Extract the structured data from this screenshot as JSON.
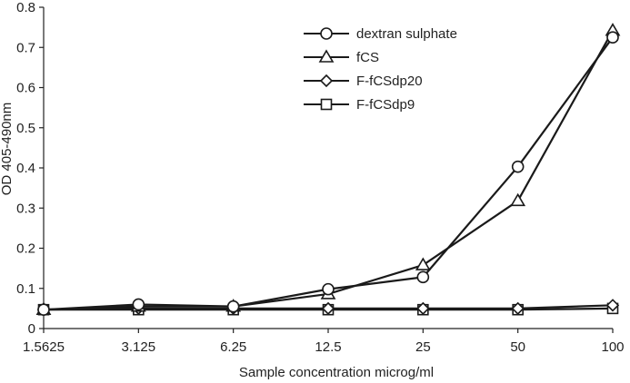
{
  "chart_data": {
    "type": "line",
    "title": "",
    "xlabel": "Sample concentration microg/ml",
    "ylabel": "OD 405-490nm",
    "categories": [
      "1.5625",
      "3.125",
      "6.25",
      "12.5",
      "25",
      "50",
      "100"
    ],
    "ylim": [
      0,
      0.8
    ],
    "yticks": [
      "0",
      "0.1",
      "0.2",
      "0.3",
      "0.4",
      "0.5",
      "0.6",
      "0.7",
      "0.8"
    ],
    "grid": false,
    "legend": "top-right",
    "series": [
      {
        "name": "dextran sulphate",
        "marker": "circle",
        "color": "#1a1a1a",
        "values": [
          0.047,
          0.06,
          0.055,
          0.098,
          0.128,
          0.403,
          0.725
        ]
      },
      {
        "name": "fCS",
        "marker": "triangle",
        "color": "#1a1a1a",
        "values": [
          0.047,
          0.055,
          0.055,
          0.086,
          0.158,
          0.318,
          0.742
        ]
      },
      {
        "name": "F-fCSdp20",
        "marker": "diamond",
        "color": "#1a1a1a",
        "values": [
          0.047,
          0.05,
          0.05,
          0.05,
          0.05,
          0.05,
          0.058
        ]
      },
      {
        "name": "F-fCSdp9",
        "marker": "square",
        "color": "#1a1a1a",
        "values": [
          0.047,
          0.047,
          0.047,
          0.047,
          0.047,
          0.047,
          0.05
        ]
      }
    ]
  }
}
